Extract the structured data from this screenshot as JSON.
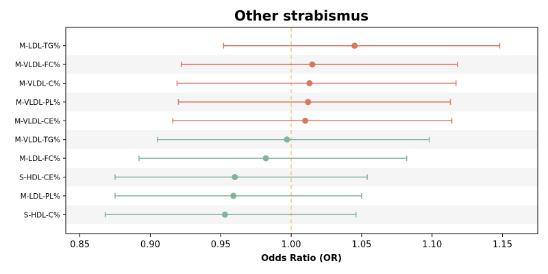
{
  "chart_data": {
    "type": "forest",
    "title": "Other strabismus",
    "xlabel": "Odds Ratio (OR)",
    "xlim": [
      0.84,
      1.175
    ],
    "xticks": [
      0.85,
      0.9,
      0.95,
      1.0,
      1.05,
      1.1,
      1.15
    ],
    "xtick_labels": [
      "0.85",
      "0.90",
      "0.95",
      "1.00",
      "1.05",
      "1.10",
      "1.15"
    ],
    "reference_line": 1.0,
    "reference_color": "#f2c77e",
    "band_color": "#f5f5f5",
    "colors": {
      "risk": "#d9785f",
      "protective": "#82b49c"
    },
    "rows": [
      {
        "label": "M-LDL-TG%",
        "or": 1.045,
        "lower": 0.952,
        "upper": 1.148,
        "group": "risk"
      },
      {
        "label": "M-VLDL-FC%",
        "or": 1.015,
        "lower": 0.922,
        "upper": 1.118,
        "group": "risk"
      },
      {
        "label": "M-VLDL-C%",
        "or": 1.013,
        "lower": 0.919,
        "upper": 1.117,
        "group": "risk"
      },
      {
        "label": "M-VLDL-PL%",
        "or": 1.012,
        "lower": 0.92,
        "upper": 1.113,
        "group": "risk"
      },
      {
        "label": "M-VLDL-CE%",
        "or": 1.01,
        "lower": 0.916,
        "upper": 1.114,
        "group": "risk"
      },
      {
        "label": "M-VLDL-TG%",
        "or": 0.997,
        "lower": 0.905,
        "upper": 1.098,
        "group": "protective"
      },
      {
        "label": "M-LDL-FC%",
        "or": 0.982,
        "lower": 0.892,
        "upper": 1.082,
        "group": "protective"
      },
      {
        "label": "S-HDL-CE%",
        "or": 0.96,
        "lower": 0.875,
        "upper": 1.054,
        "group": "protective"
      },
      {
        "label": "M-LDL-PL%",
        "or": 0.959,
        "lower": 0.875,
        "upper": 1.05,
        "group": "protective"
      },
      {
        "label": "S-HDL-C%",
        "or": 0.953,
        "lower": 0.868,
        "upper": 1.046,
        "group": "protective"
      }
    ]
  }
}
